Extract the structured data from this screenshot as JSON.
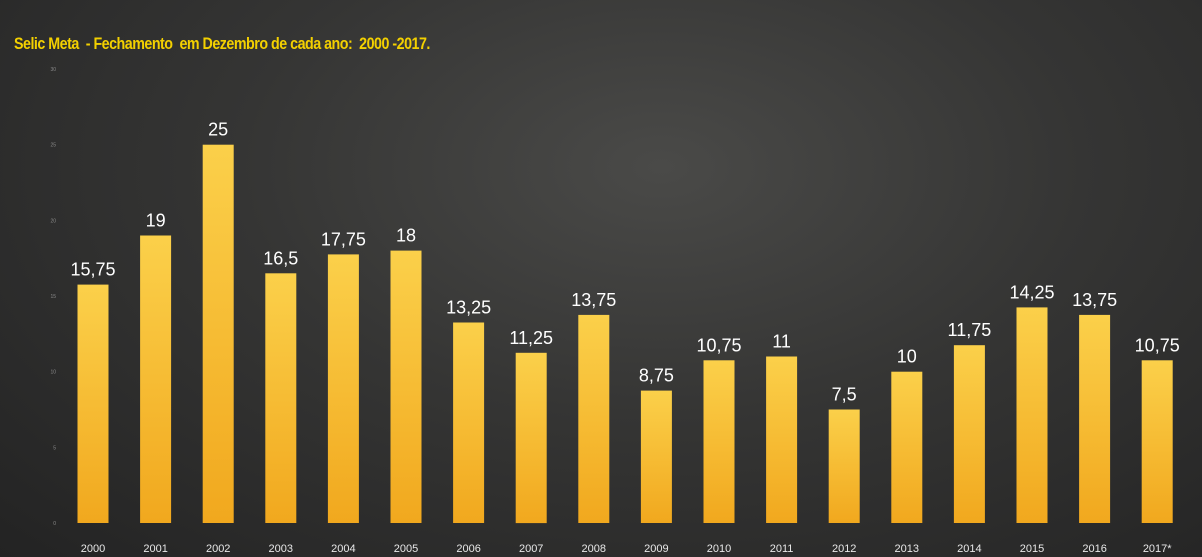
{
  "chart_data": {
    "type": "bar",
    "title": "Selic Meta  - Fechamento  em Dezembro de cada ano:  2000 -2017.",
    "categories": [
      "2000",
      "2001",
      "2002",
      "2003",
      "2004",
      "2005",
      "2006",
      "2007",
      "2008",
      "2009",
      "2010",
      "2011",
      "2012",
      "2013",
      "2014",
      "2015",
      "2016",
      "2017*"
    ],
    "values": [
      15.75,
      19,
      25,
      16.5,
      17.75,
      18,
      13.25,
      11.25,
      13.75,
      8.75,
      10.75,
      11,
      7.5,
      10,
      11.75,
      14.25,
      13.75,
      10.75
    ],
    "data_labels": [
      "15,75",
      "19",
      "25",
      "16,5",
      "17,75",
      "18",
      "13,25",
      "11,25",
      "13,75",
      "8,75",
      "10,75",
      "11",
      "7,5",
      "10",
      "11,75",
      "14,25",
      "13,75",
      "10,75"
    ],
    "y_ticks": [
      "0",
      "5",
      "10",
      "15",
      "20",
      "25",
      "30"
    ],
    "ylim": [
      0,
      30
    ],
    "xlabel": "",
    "ylabel": "",
    "grid": false,
    "legend": "none",
    "colors": {
      "bar_top": "#fbd04a",
      "bar_bottom": "#f1a81e",
      "title": "#f3d000",
      "label": "#ffffff",
      "background": "#353534"
    }
  }
}
